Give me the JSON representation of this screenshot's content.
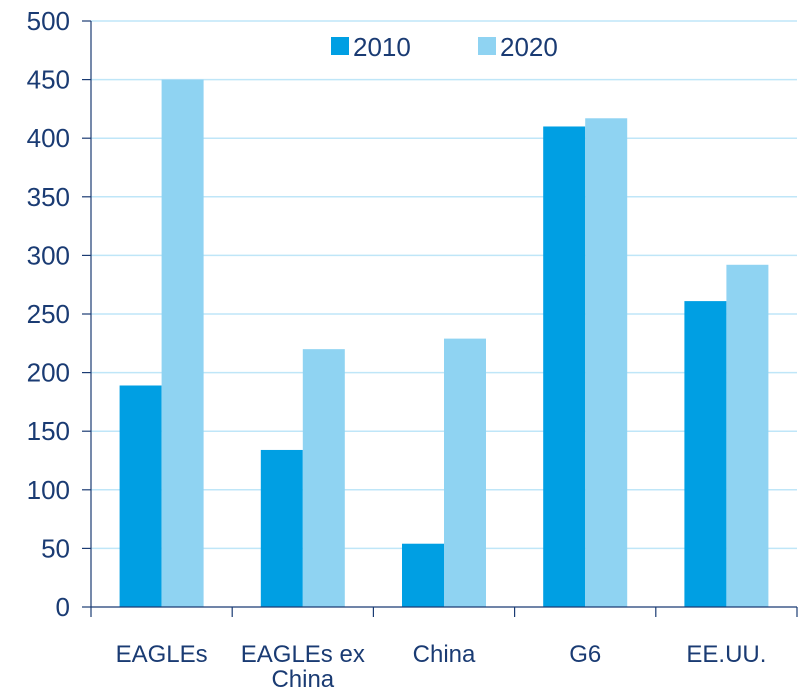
{
  "chart_data": {
    "type": "bar",
    "title": "",
    "xlabel": "",
    "ylabel": "",
    "categories": [
      [
        "EAGLEs"
      ],
      [
        "EAGLEs ex",
        "China"
      ],
      [
        "China"
      ],
      [
        "G6"
      ],
      [
        "EE.UU."
      ]
    ],
    "series": [
      {
        "name": "2010",
        "values": [
          189,
          134,
          54,
          410,
          261
        ],
        "color": "#009fe3"
      },
      {
        "name": "2020",
        "values": [
          450,
          220,
          229,
          417,
          292
        ],
        "color": "#8fd3f2"
      }
    ],
    "ylim": [
      0,
      500
    ],
    "yticks": [
      "0",
      "50",
      "100",
      "150",
      "200",
      "250",
      "300",
      "350",
      "400",
      "450",
      "500"
    ],
    "grid": true,
    "legend_position": "top-center",
    "colors": {
      "axis_text": "#1a3b73",
      "grid": "#bfe6f8",
      "axis": "#1a3b73"
    }
  }
}
